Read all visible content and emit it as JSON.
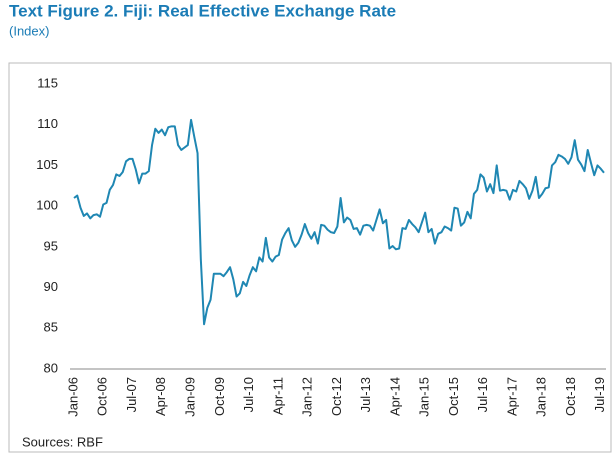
{
  "chart_data": {
    "type": "line",
    "title": "Text Figure 2. Fiji: Real Effective Exchange Rate",
    "subtitle": "(Index)",
    "source": "Sources: RBF",
    "categories": [
      "Jan-06",
      null,
      null,
      null,
      null,
      null,
      null,
      null,
      null,
      "Oct-06",
      null,
      null,
      null,
      null,
      null,
      null,
      null,
      null,
      "Jul-07",
      null,
      null,
      null,
      null,
      null,
      null,
      null,
      null,
      "Apr-08",
      null,
      null,
      null,
      null,
      null,
      null,
      null,
      null,
      "Jan-09",
      null,
      null,
      null,
      null,
      null,
      null,
      null,
      null,
      "Oct-09",
      null,
      null,
      null,
      null,
      null,
      null,
      null,
      null,
      "Jul-10",
      null,
      null,
      null,
      null,
      null,
      null,
      null,
      null,
      "Apr-11",
      null,
      null,
      null,
      null,
      null,
      null,
      null,
      null,
      "Jan-12",
      null,
      null,
      null,
      null,
      null,
      null,
      null,
      null,
      "Oct-12",
      null,
      null,
      null,
      null,
      null,
      null,
      null,
      null,
      "Jul-13",
      null,
      null,
      null,
      null,
      null,
      null,
      null,
      null,
      "Apr-14",
      null,
      null,
      null,
      null,
      null,
      null,
      null,
      null,
      "Jan-15",
      null,
      null,
      null,
      null,
      null,
      null,
      null,
      null,
      "Oct-15",
      null,
      null,
      null,
      null,
      null,
      null,
      null,
      null,
      "Jul-16",
      null,
      null,
      null,
      null,
      null,
      null,
      null,
      null,
      "Apr-17",
      null,
      null,
      null,
      null,
      null,
      null,
      null,
      null,
      "Jan-18",
      null,
      null,
      null,
      null,
      null,
      null,
      null,
      null,
      "Oct-18",
      null,
      null,
      null,
      null,
      null,
      null,
      null,
      null,
      "Jul-19",
      null
    ],
    "values": [
      101.0,
      101.3,
      99.8,
      98.8,
      99.1,
      98.5,
      98.9,
      99.0,
      98.7,
      100.2,
      100.4,
      102.0,
      102.6,
      103.9,
      103.7,
      104.2,
      105.5,
      105.8,
      105.8,
      104.5,
      102.8,
      104.0,
      104.0,
      104.3,
      107.5,
      109.5,
      109.0,
      109.4,
      108.7,
      109.7,
      109.8,
      109.8,
      107.5,
      106.9,
      107.2,
      107.5,
      110.6,
      108.5,
      106.5,
      93.5,
      85.5,
      87.5,
      88.5,
      91.7,
      91.7,
      91.7,
      91.4,
      91.9,
      92.5,
      91.0,
      88.9,
      89.3,
      90.7,
      90.2,
      91.5,
      92.5,
      92.0,
      93.7,
      93.2,
      96.1,
      93.7,
      93.2,
      93.8,
      94.0,
      95.9,
      96.7,
      97.3,
      95.8,
      95.0,
      95.5,
      96.5,
      97.8,
      96.7,
      96.0,
      96.8,
      95.4,
      97.7,
      97.6,
      97.1,
      96.8,
      96.7,
      97.5,
      101.0,
      98.0,
      98.6,
      98.3,
      97.2,
      97.3,
      96.5,
      97.6,
      97.7,
      97.6,
      97.0,
      98.3,
      99.6,
      97.9,
      98.3,
      94.8,
      95.1,
      94.7,
      94.8,
      97.3,
      97.2,
      98.3,
      97.8,
      97.4,
      96.8,
      98.0,
      99.2,
      96.8,
      97.2,
      95.4,
      96.6,
      96.8,
      97.5,
      97.3,
      97.0,
      99.8,
      99.7,
      97.6,
      98.0,
      99.3,
      98.5,
      101.5,
      102.0,
      103.9,
      103.5,
      101.8,
      102.7,
      101.6,
      105.0,
      101.9,
      102.0,
      101.9,
      100.8,
      102.0,
      101.8,
      103.1,
      102.7,
      102.2,
      100.9,
      101.9,
      103.6,
      101.0,
      101.5,
      102.2,
      102.3,
      105.0,
      105.4,
      106.3,
      106.1,
      105.8,
      105.2,
      106.0,
      108.1,
      105.7,
      105.1,
      104.3,
      106.9,
      105.3,
      103.8,
      105.0,
      104.6,
      104.1
    ],
    "color": "#1f87b3",
    "ylim": [
      80,
      115
    ],
    "yticks": [
      80,
      85,
      90,
      95,
      100,
      105,
      110,
      115
    ],
    "grid": false
  }
}
